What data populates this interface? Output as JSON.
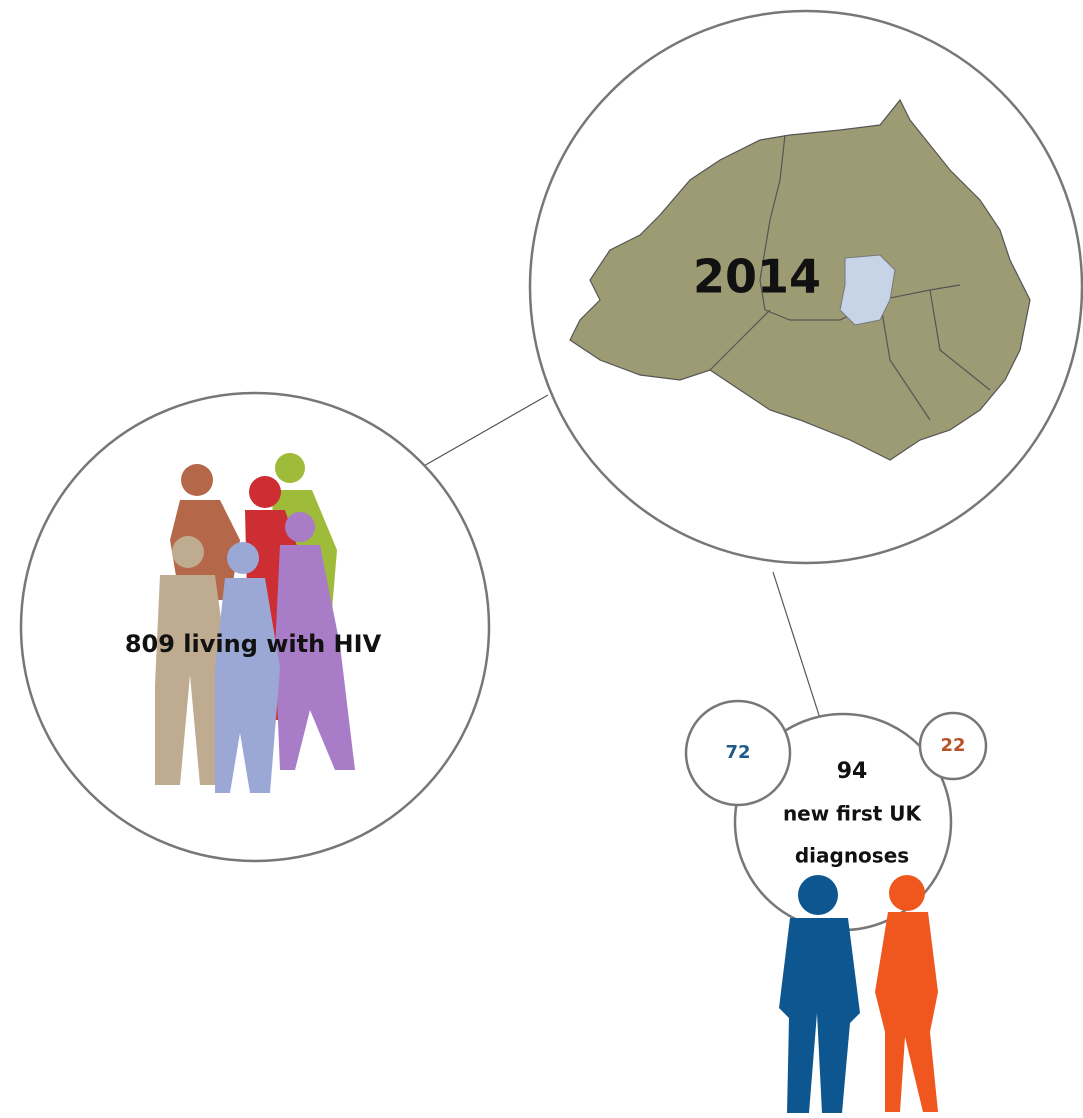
{
  "map_node": {
    "year": 2014
  },
  "living_node": {
    "label": "809 living with HIV"
  },
  "diagnoses_node": {
    "count": 94,
    "lines": [
      "new first UK",
      "diagnoses"
    ]
  },
  "male_node": {
    "count": 72
  },
  "female_node": {
    "count": 22
  }
}
